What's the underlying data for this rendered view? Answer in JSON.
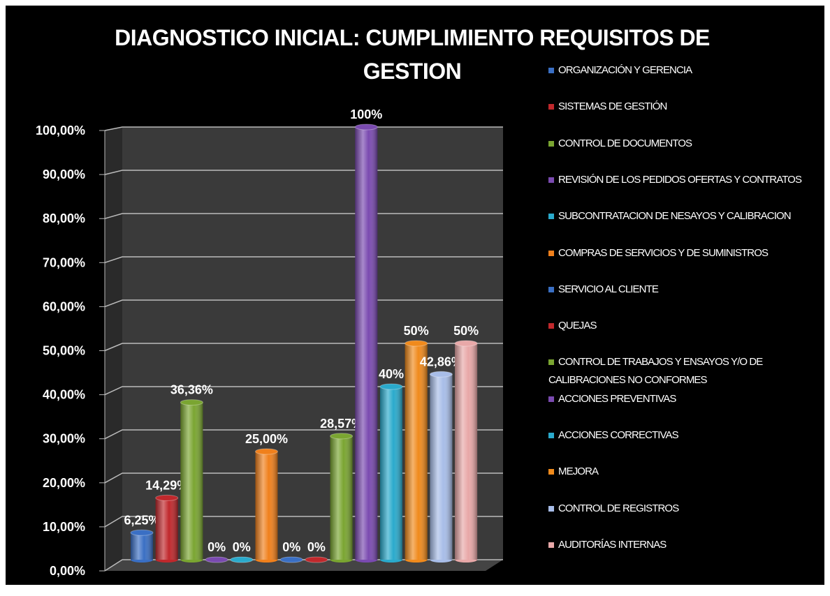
{
  "chart_data": {
    "type": "bar",
    "title": "DIAGNOSTICO INICIAL: CUMPLIMIENTO REQUISITOS DE GESTION",
    "series": [
      {
        "name": "ORGANIZACIÓN Y GERENCIA",
        "color": "#3a6fc4",
        "values": [
          6.25
        ],
        "value_labels": [
          "6,25%"
        ]
      },
      {
        "name": "SISTEMAS DE GESTIÓN",
        "color": "#c0282c",
        "values": [
          14.29
        ],
        "value_labels": [
          "14,29%"
        ]
      },
      {
        "name": "CONTROL DE DOCUMENTOS",
        "color": "#7aa531",
        "values": [
          36.36
        ],
        "value_labels": [
          "36,36%"
        ]
      },
      {
        "name": "REVISIÓN DE LOS PEDIDOS OFERTAS Y CONTRATOS",
        "color": "#7a4ab0",
        "values": [
          0
        ],
        "value_labels": [
          "0%"
        ]
      },
      {
        "name": "SUBCONTRATACION DE NESAYOS Y CALIBRACION",
        "color": "#2aaacc",
        "values": [
          0
        ],
        "value_labels": [
          "0%"
        ]
      },
      {
        "name": "COMPRAS DE SERVICIOS Y DE SUMINISTROS",
        "color": "#f0801c",
        "values": [
          25
        ],
        "value_labels": [
          "25,00%"
        ]
      },
      {
        "name": "SERVICIO AL CLIENTE",
        "color": "#3a6fc4",
        "values": [
          0
        ],
        "value_labels": [
          "0%"
        ]
      },
      {
        "name": "QUEJAS",
        "color": "#c0282c",
        "values": [
          0
        ],
        "value_labels": [
          "0%"
        ]
      },
      {
        "name": "CONTROL DE TRABAJOS Y ENSAYOS Y/O DE CALIBRACIONES NO CONFORMES",
        "color": "#7aa531",
        "values": [
          28.57
        ],
        "value_labels": [
          "28,57%"
        ]
      },
      {
        "name": "ACCIONES PREVENTIVAS",
        "color": "#7a4ab0",
        "values": [
          100
        ],
        "value_labels": [
          "100%"
        ]
      },
      {
        "name": "ACCIONES CORRECTIVAS",
        "color": "#2aaacc",
        "values": [
          40
        ],
        "value_labels": [
          "40%"
        ]
      },
      {
        "name": "MEJORA",
        "color": "#f08a1c",
        "values": [
          50
        ],
        "value_labels": [
          "50%"
        ]
      },
      {
        "name": "CONTROL DE REGISTROS",
        "color": "#a8bde8",
        "values": [
          42.86
        ],
        "value_labels": [
          "42,86%"
        ]
      },
      {
        "name": "AUDITORÍAS INTERNAS",
        "color": "#e8a8a8",
        "values": [
          50
        ],
        "value_labels": [
          "50%"
        ]
      }
    ],
    "ylim": [
      0,
      100
    ],
    "yticks": [
      {
        "value": 0,
        "label": "0,00%"
      },
      {
        "value": 10,
        "label": "10,00%"
      },
      {
        "value": 20,
        "label": "20,00%"
      },
      {
        "value": 30,
        "label": "30,00%"
      },
      {
        "value": 40,
        "label": "40,00%"
      },
      {
        "value": 50,
        "label": "50,00%"
      },
      {
        "value": 60,
        "label": "60,00%"
      },
      {
        "value": 70,
        "label": "70,00%"
      },
      {
        "value": 80,
        "label": "80,00%"
      },
      {
        "value": 90,
        "label": "90,00%"
      },
      {
        "value": 100,
        "label": "100,00%"
      }
    ],
    "grid": true,
    "legend": "right"
  }
}
